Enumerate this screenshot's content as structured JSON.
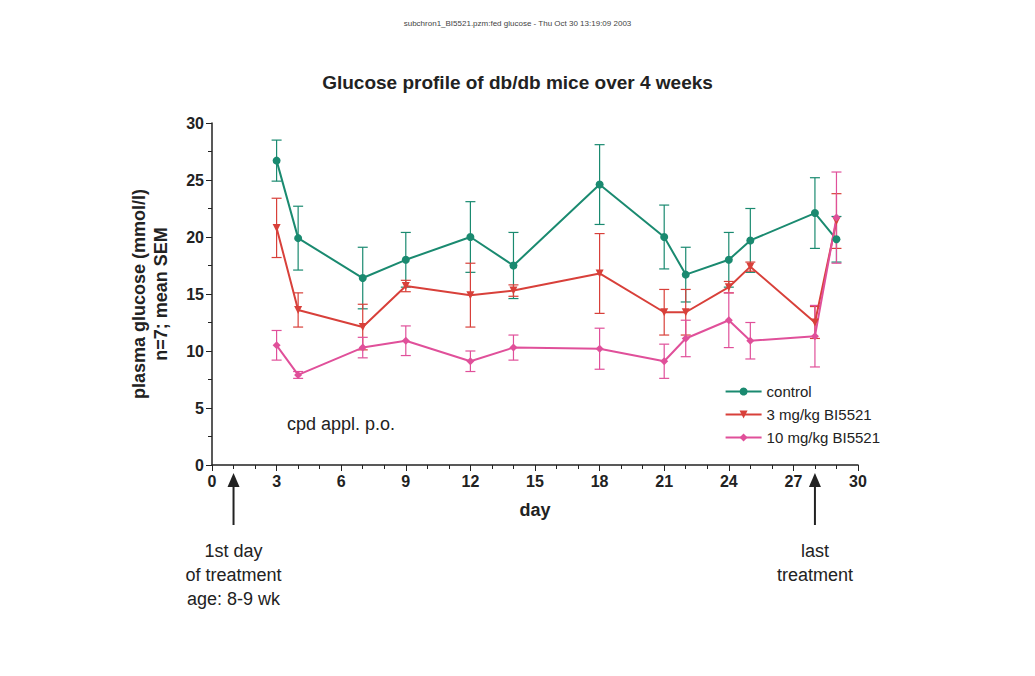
{
  "chart_data": {
    "type": "line",
    "header": "subchron1_BI5521.pzm:fed glucose - Thu Oct 30 13:19:09 2003",
    "title": "Glucose profile of db/db mice over 4 weeks",
    "xlabel": "day",
    "ylabel": "plasma glucose (mmol/l)\nn=7; mean SEM",
    "x": [
      3,
      4,
      7,
      9,
      12,
      14,
      18,
      21,
      22,
      24,
      25,
      28,
      29
    ],
    "series": [
      {
        "name": "control",
        "color": "#1a8a70",
        "marker": "circle",
        "values": [
          26.7,
          19.9,
          16.4,
          18.0,
          20.0,
          17.5,
          24.6,
          20.0,
          16.7,
          18.0,
          19.7,
          22.1,
          19.8
        ],
        "errors": [
          1.8,
          2.8,
          2.7,
          2.4,
          3.1,
          2.9,
          3.5,
          2.8,
          2.4,
          2.4,
          2.8,
          3.1,
          2.0
        ]
      },
      {
        "name": "3 mg/kg BI5521",
        "color": "#d8403a",
        "marker": "triangle-down",
        "values": [
          20.8,
          13.6,
          12.1,
          15.7,
          14.9,
          15.3,
          16.8,
          13.4,
          13.4,
          15.6,
          17.4,
          12.5,
          21.4
        ],
        "errors": [
          2.6,
          1.5,
          2.0,
          0.5,
          2.8,
          0.5,
          3.5,
          2.0,
          2.0,
          0.5,
          0.4,
          1.4,
          2.4
        ]
      },
      {
        "name": "10 mg/kg BI5521",
        "color": "#e0509a",
        "marker": "diamond",
        "values": [
          10.5,
          7.9,
          10.3,
          10.9,
          9.1,
          10.3,
          10.2,
          9.1,
          11.1,
          12.7,
          10.9,
          11.3,
          21.7
        ],
        "errors": [
          1.3,
          0.3,
          0.9,
          1.3,
          0.9,
          1.1,
          1.8,
          1.5,
          1.6,
          2.4,
          1.6,
          2.7,
          4.0
        ]
      }
    ],
    "xlim": [
      0,
      30
    ],
    "xticks": [
      0,
      3,
      6,
      9,
      12,
      15,
      18,
      21,
      24,
      27,
      30
    ],
    "ylim": [
      0,
      30
    ],
    "yticks": [
      0,
      5,
      10,
      15,
      20,
      25,
      30
    ],
    "grid": false,
    "legend": "lower right",
    "annotations": [
      {
        "text": "cpd appl. p.o."
      },
      {
        "text": "1st day\nof treatment\nage: 8-9 wk",
        "x": 1
      },
      {
        "text": "last\ntreatment",
        "x": 28
      }
    ]
  }
}
